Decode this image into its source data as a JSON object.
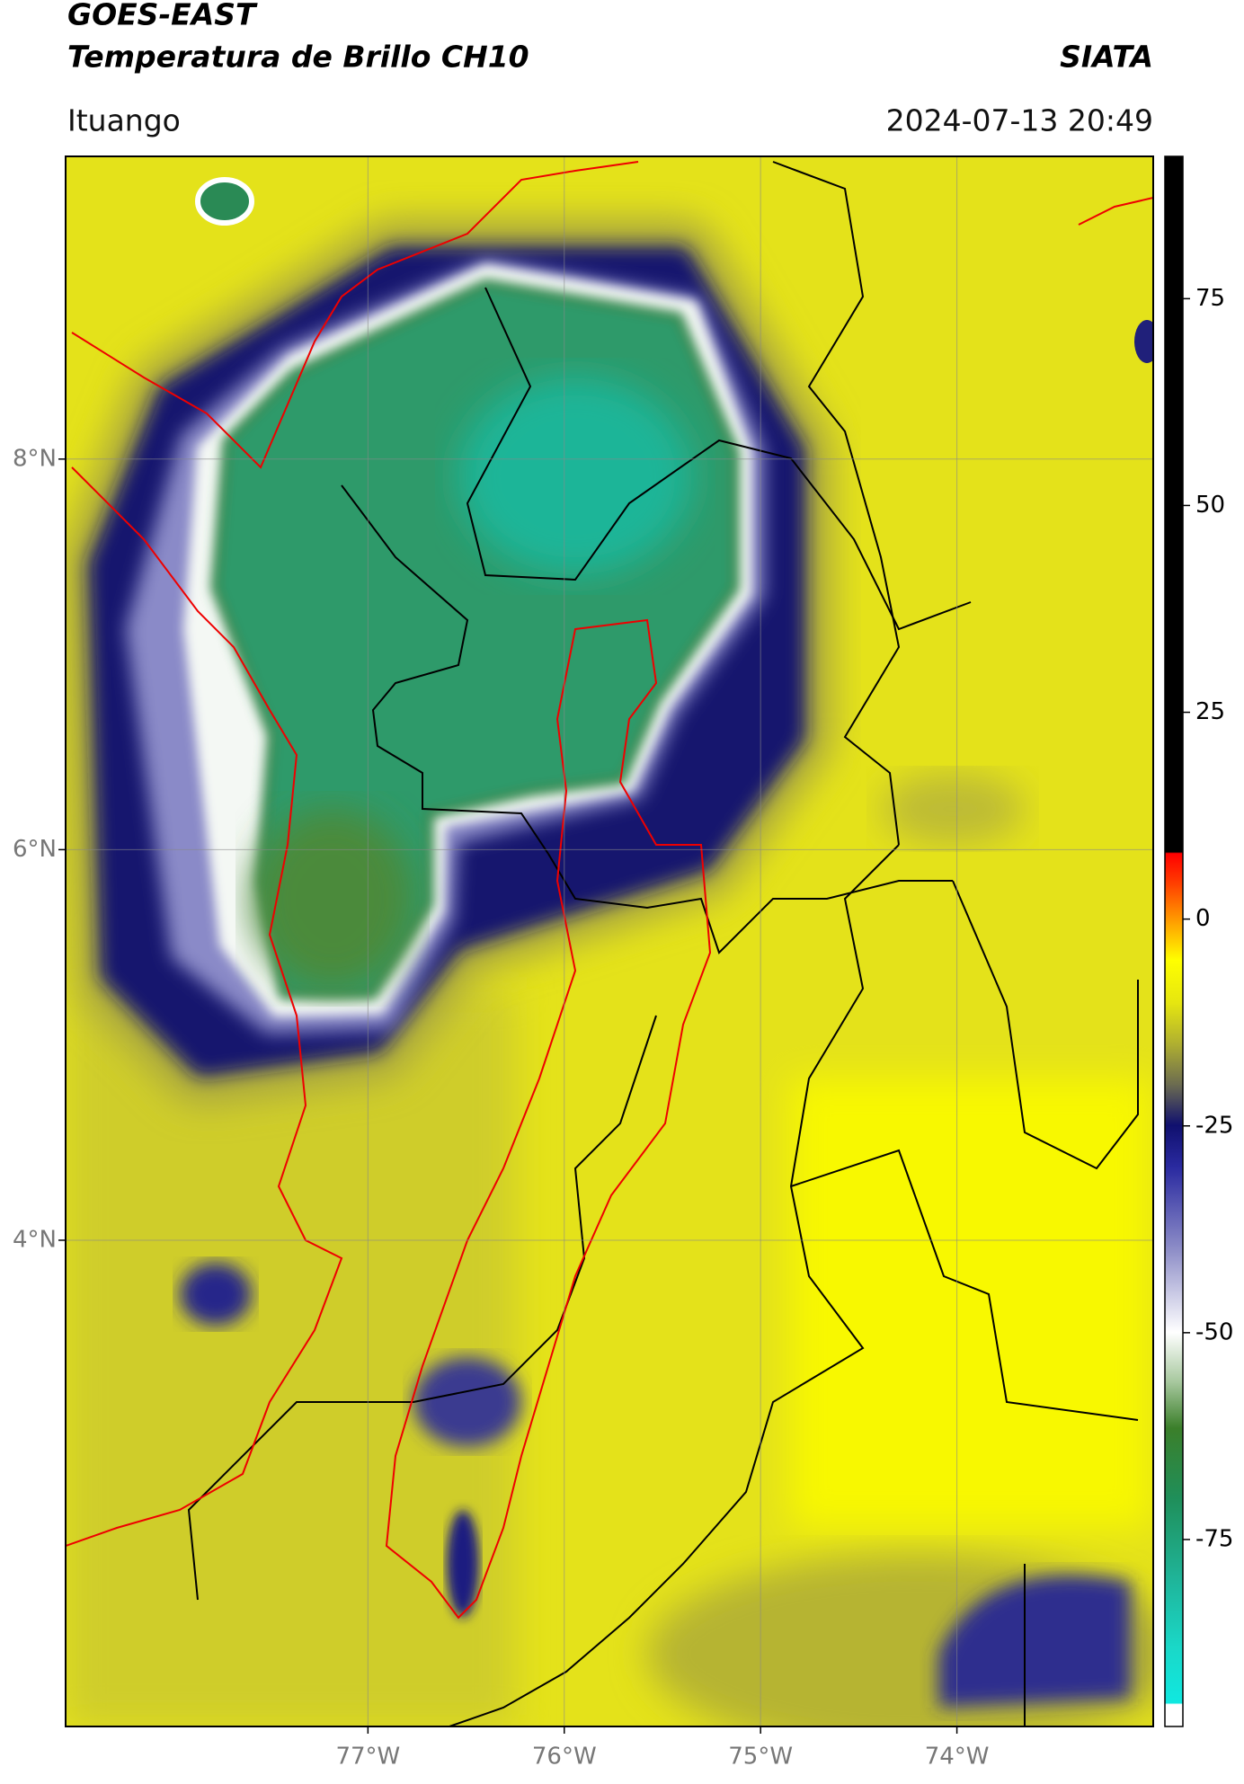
{
  "header": {
    "title": "GOES-EAST",
    "subtitle": "Temperatura de Brillo CH10",
    "source": "SIATA",
    "location": "Ituango",
    "datetime": "2024-07-13 20:49"
  },
  "map": {
    "xlim": [
      -78.54,
      -73.0
    ],
    "ylim": [
      1.51,
      9.55
    ],
    "xticks": [
      {
        "value": -77,
        "label": "77°W"
      },
      {
        "value": -76,
        "label": "76°W"
      },
      {
        "value": -75,
        "label": "75°W"
      },
      {
        "value": -74,
        "label": "74°W"
      }
    ],
    "yticks": [
      {
        "value": 8,
        "label": "8°N"
      },
      {
        "value": 6,
        "label": "6°N"
      },
      {
        "value": 4,
        "label": "4°N"
      }
    ],
    "grid": true
  },
  "colorbar": {
    "lim": [
      -97.6,
      92.2
    ],
    "ticks": [
      75,
      50,
      25,
      0,
      -25,
      -50,
      -75
    ]
  }
}
